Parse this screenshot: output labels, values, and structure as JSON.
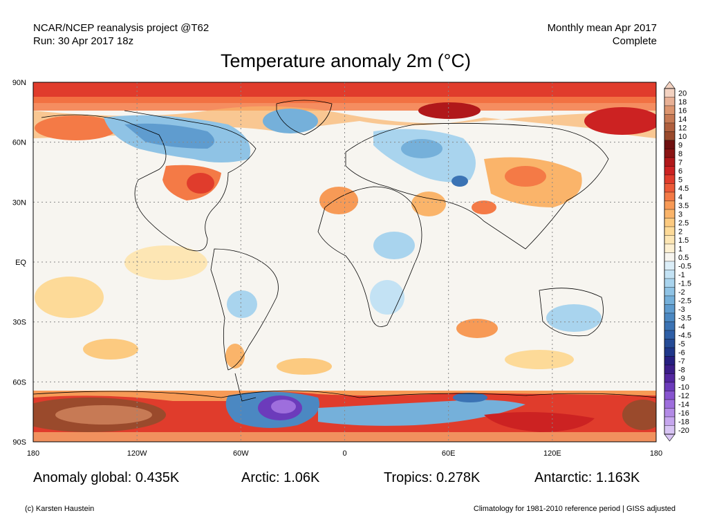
{
  "header": {
    "left_line1": "NCAR/NCEP reanalysis project @T62",
    "left_line2": "Run: 30 Apr 2017 18z",
    "right_line1": "Monthly mean Apr 2017",
    "right_line2": "Complete"
  },
  "title": "Temperature anomaly 2m (°C)",
  "map": {
    "lat_labels": [
      "90N",
      "60N",
      "30N",
      "EQ",
      "30S",
      "60S",
      "90S"
    ],
    "lon_labels": [
      "180",
      "120W",
      "60W",
      "0",
      "60E",
      "120E",
      "180"
    ],
    "gridlines": "dotted"
  },
  "colorbar": {
    "levels": [
      "20",
      "18",
      "16",
      "14",
      "12",
      "10",
      "9",
      "8",
      "7",
      "6",
      "5",
      "4.5",
      "4",
      "3.5",
      "3",
      "2.5",
      "2",
      "1.5",
      "1",
      "0.5",
      "-0.5",
      "-1",
      "-1.5",
      "-2",
      "-2.5",
      "-3",
      "-3.5",
      "-4",
      "-4.5",
      "-5",
      "-6",
      "-7",
      "-8",
      "-9",
      "-10",
      "-12",
      "-14",
      "-16",
      "-18",
      "-20"
    ],
    "colors": [
      "#f3d2c1",
      "#e8b095",
      "#dc956f",
      "#c77a55",
      "#b0603e",
      "#9a4a2c",
      "#6e1010",
      "#8a1414",
      "#b0181a",
      "#cc2222",
      "#e03c2c",
      "#ec5a38",
      "#f47a46",
      "#f79a56",
      "#fab46a",
      "#fcca80",
      "#fdda98",
      "#fde6b4",
      "#fdf0d2",
      "#f7f5f0",
      "#dceef8",
      "#c3e2f4",
      "#a9d4ee",
      "#8fc3e5",
      "#75b0da",
      "#5f9ccf",
      "#4b88c2",
      "#3b73b4",
      "#2e5fa6",
      "#254b96",
      "#1f378a",
      "#261f80",
      "#3b1d88",
      "#5427a0",
      "#6c3bbb",
      "#8754cf",
      "#9e6edd",
      "#b38ae6",
      "#c6a6ee",
      "#d8c4f4"
    ]
  },
  "stats": {
    "global": "Anomaly global: 0.435K",
    "arctic": "Arctic: 1.06K",
    "tropics": "Tropics: 0.278K",
    "antarctic": "Antarctic: 1.163K"
  },
  "footer": {
    "left": "(c) Karsten Haustein",
    "right": "Climatology for 1981-2010 reference period | GISS adjusted"
  }
}
